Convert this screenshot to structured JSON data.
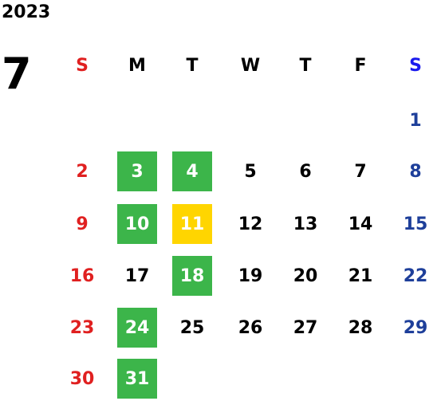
{
  "calendar": {
    "year": "2023",
    "month": "7",
    "weekdays": [
      "S",
      "M",
      "T",
      "W",
      "T",
      "F",
      "S"
    ],
    "colors": {
      "sunday": "#e02020",
      "saturday_header": "#1a1aee",
      "saturday": "#1e3f9a",
      "weekday": "#000000",
      "highlight_green": "#3cb54a",
      "highlight_yellow": "#ffd500",
      "highlight_text": "#ffffff"
    },
    "weeks": [
      [
        "",
        "",
        "",
        "",
        "",
        "",
        "1"
      ],
      [
        "2",
        "3",
        "4",
        "5",
        "6",
        "7",
        "8"
      ],
      [
        "9",
        "10",
        "11",
        "12",
        "13",
        "14",
        "15"
      ],
      [
        "16",
        "17",
        "18",
        "19",
        "20",
        "21",
        "22"
      ],
      [
        "23",
        "24",
        "25",
        "26",
        "27",
        "28",
        "29"
      ],
      [
        "30",
        "31",
        "",
        "",
        "",
        "",
        ""
      ]
    ],
    "highlighted_green": [
      "3",
      "4",
      "10",
      "18",
      "24",
      "31"
    ],
    "highlighted_yellow": [
      "11"
    ]
  }
}
